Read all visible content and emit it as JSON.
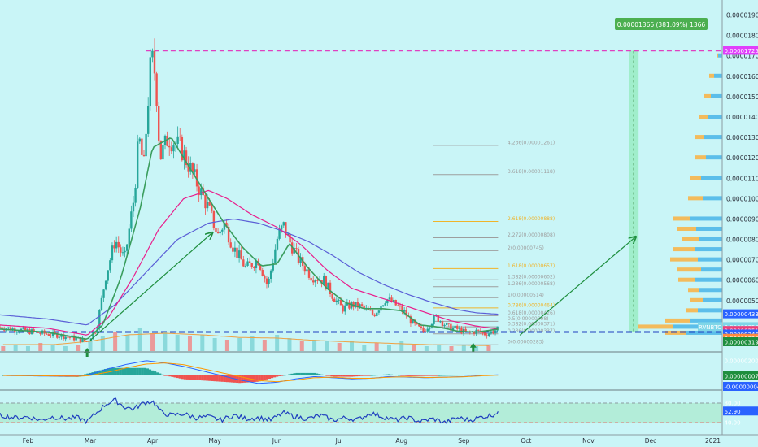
{
  "colors": {
    "background": "#c9f5f7",
    "up_candle": "#26a69a",
    "down_candle": "#ef5350",
    "ema_short": "#3a9d5d",
    "ema_mid": "#e91e8c",
    "ema_long": "#5b5fd6",
    "arrow": "#1e8e3e",
    "fib_grey": "#9e9e9e",
    "fib_gold": "#f0b429",
    "support": "#1f3fbf",
    "resistance": "#e040c0",
    "volume_profile_blue": "#4fb8e8",
    "volume_profile_orange": "#f7b54a",
    "measure_box": "#4caf50"
  },
  "price_axis": {
    "ticks": [
      "0.00001900",
      "0.00001800",
      "0.00001700",
      "0.00001600",
      "0.00001500",
      "0.00001400",
      "0.00001300",
      "0.00001200",
      "0.00001100",
      "0.00001000",
      "0.00000900",
      "0.00000800",
      "0.00000700",
      "0.00000600",
      "0.00000500"
    ],
    "tick_values": [
      1900,
      1800,
      1700,
      1600,
      1500,
      1400,
      1300,
      1200,
      1100,
      1000,
      900,
      800,
      700,
      600,
      500
    ]
  },
  "x_axis": {
    "labels": [
      "Feb",
      "Mar",
      "Apr",
      "May",
      "Jun",
      "Jul",
      "Aug",
      "Sep",
      "Oct",
      "Nov",
      "Dec",
      "2021"
    ],
    "positions": [
      1,
      2,
      3,
      4,
      5,
      6,
      7,
      8,
      9,
      10,
      11,
      12
    ]
  },
  "badges": {
    "top_target": {
      "text": "0.00001725",
      "color": "#e040fb"
    },
    "ema_long": {
      "text": "0.00000433",
      "color": "#2962ff"
    },
    "symbol": {
      "label": "RVNBTC",
      "text": "0.00000359",
      "color": "#7fd6e8"
    },
    "ema_mid": {
      "text": "0.00000351",
      "color": "#ec407a"
    },
    "support": {
      "text": "0.00000346",
      "color": "#2962ff"
    },
    "orange": {
      "text": "0.00000329",
      "color": "#ff8a3d"
    },
    "green": {
      "text": "0.00000319",
      "color": "#1e8e3e"
    },
    "macd_top": {
      "text": "0.00000200"
    },
    "macd_green": {
      "text": "0.00000007",
      "color": "#1e8e3e"
    },
    "macd_blue": {
      "text": "-0.00000004",
      "color": "#2962ff"
    },
    "rsi_top": {
      "text": "80.00"
    },
    "rsi_value": {
      "text": "62.90",
      "color": "#2962ff"
    },
    "rsi_bottom": {
      "text": "40.00"
    }
  },
  "measure": {
    "text": "0.00001366 (381.09%) 1366"
  },
  "fib_levels": [
    {
      "ratio": 4.236,
      "text": "4.236(0.00001261)",
      "value": 1261,
      "gold": false
    },
    {
      "ratio": 3.618,
      "text": "3.618(0.00001118)",
      "value": 1118,
      "gold": false
    },
    {
      "ratio": 2.618,
      "text": "2.618(0.00000888)",
      "value": 888,
      "gold": true
    },
    {
      "ratio": 2.272,
      "text": "2.272(0.00000808)",
      "value": 808,
      "gold": false
    },
    {
      "ratio": 2.0,
      "text": "2(0.00000745)",
      "value": 745,
      "gold": false
    },
    {
      "ratio": 1.618,
      "text": "1.618(0.00000657)",
      "value": 657,
      "gold": true
    },
    {
      "ratio": 1.382,
      "text": "1.382(0.00000602)",
      "value": 602,
      "gold": false
    },
    {
      "ratio": 1.236,
      "text": "1.236(0.00000568)",
      "value": 568,
      "gold": false
    },
    {
      "ratio": 1.0,
      "text": "1(0.00000514)",
      "value": 514,
      "gold": false
    },
    {
      "ratio": 0.786,
      "text": "0.786(0.00000464)",
      "value": 464,
      "gold": true
    },
    {
      "ratio": 0.618,
      "text": "0.618(0.00000426)",
      "value": 426,
      "gold": false
    },
    {
      "ratio": 0.5,
      "text": "0.5(0.00000398)",
      "value": 398,
      "gold": false
    },
    {
      "ratio": 0.382,
      "text": "0.382(0.00000371)",
      "value": 371,
      "gold": false
    },
    {
      "ratio": 0.236,
      "text": "0.236(0.00000337)",
      "value": 337,
      "gold": false
    },
    {
      "ratio": 0.0,
      "text": "0(0.00000283)",
      "value": 283,
      "gold": false
    }
  ],
  "chart_data": {
    "type": "line",
    "x_unit": "months",
    "xlim": [
      0.55,
      12.15
    ],
    "ylim": [
      280,
      1950
    ],
    "price_path": {
      "x": [
        0.55,
        0.9,
        1.2,
        1.5,
        1.75,
        1.95,
        2.1,
        2.25,
        2.4,
        2.55,
        2.7,
        2.78,
        2.86,
        2.92,
        2.98,
        3.05,
        3.12,
        3.25,
        3.45,
        3.6,
        3.75,
        3.9,
        4.05,
        4.15,
        4.3,
        4.5,
        4.7,
        4.85,
        5.0,
        5.1,
        5.2,
        5.35,
        5.55,
        5.75,
        5.9,
        6.05,
        6.2,
        6.35,
        6.55,
        6.75,
        6.9,
        7.05,
        7.2,
        7.35,
        7.55,
        7.75,
        7.9,
        8.05,
        8.2,
        8.35,
        8.55
      ],
      "y": [
        370,
        355,
        340,
        330,
        315,
        300,
        360,
        620,
        800,
        700,
        1000,
        1300,
        1150,
        1450,
        1700,
        1600,
        1200,
        1300,
        1250,
        1150,
        1050,
        950,
        820,
        880,
        760,
        660,
        700,
        570,
        800,
        870,
        790,
        700,
        620,
        600,
        520,
        460,
        480,
        470,
        430,
        510,
        480,
        440,
        380,
        350,
        420,
        370,
        360,
        340,
        350,
        335,
        360
      ]
    },
    "ema_short": {
      "x": [
        0.55,
        1.3,
        1.95,
        2.2,
        2.5,
        2.8,
        3.0,
        3.3,
        3.6,
        3.9,
        4.15,
        4.45,
        4.75,
        5.0,
        5.2,
        5.5,
        5.8,
        6.1,
        6.4,
        6.7,
        7.0,
        7.3,
        7.6,
        7.9,
        8.2,
        8.55
      ],
      "y": [
        360,
        345,
        310,
        380,
        620,
        950,
        1250,
        1300,
        1150,
        1000,
        880,
        760,
        670,
        680,
        780,
        660,
        560,
        490,
        460,
        460,
        450,
        380,
        370,
        350,
        345,
        360
      ]
    },
    "ema_mid": {
      "x": [
        0.55,
        1.3,
        1.95,
        2.3,
        2.7,
        3.1,
        3.5,
        3.9,
        4.2,
        4.6,
        5.0,
        5.4,
        5.8,
        6.2,
        6.6,
        7.0,
        7.4,
        7.8,
        8.2,
        8.55
      ],
      "y": [
        380,
        365,
        330,
        420,
        620,
        850,
        1000,
        1040,
        1000,
        920,
        860,
        770,
        650,
        560,
        520,
        480,
        440,
        400,
        375,
        360
      ]
    },
    "ema_long": {
      "x": [
        0.55,
        1.3,
        1.95,
        2.4,
        2.9,
        3.4,
        3.9,
        4.3,
        4.7,
        5.1,
        5.5,
        5.9,
        6.3,
        6.7,
        7.1,
        7.5,
        7.9,
        8.2,
        8.55
      ],
      "y": [
        430,
        410,
        380,
        480,
        640,
        800,
        880,
        900,
        880,
        840,
        790,
        720,
        640,
        580,
        530,
        490,
        455,
        440,
        433
      ]
    },
    "arrows": [
      {
        "from": [
          2.0,
          305
        ],
        "to": [
          3.95,
          830
        ]
      },
      {
        "from": [
          8.9,
          330
        ],
        "to": [
          10.75,
          810
        ]
      }
    ],
    "up_markers": [
      {
        "x": 1.95,
        "y": 300
      },
      {
        "x": 8.15,
        "y": 325
      }
    ],
    "resistance_level": 1725,
    "support_level": 346,
    "measure_x": [
      10.65,
      12.15
    ],
    "volume_profile": [
      {
        "price": 1700,
        "blue": 5,
        "orange": 2
      },
      {
        "price": 1600,
        "blue": 10,
        "orange": 6
      },
      {
        "price": 1500,
        "blue": 14,
        "orange": 8
      },
      {
        "price": 1400,
        "blue": 18,
        "orange": 10
      },
      {
        "price": 1300,
        "blue": 22,
        "orange": 12
      },
      {
        "price": 1200,
        "blue": 20,
        "orange": 14
      },
      {
        "price": 1100,
        "blue": 26,
        "orange": 14
      },
      {
        "price": 1000,
        "blue": 24,
        "orange": 18
      },
      {
        "price": 900,
        "blue": 40,
        "orange": 20
      },
      {
        "price": 850,
        "blue": 32,
        "orange": 24
      },
      {
        "price": 800,
        "blue": 28,
        "orange": 22
      },
      {
        "price": 750,
        "blue": 34,
        "orange": 26
      },
      {
        "price": 700,
        "blue": 30,
        "orange": 34
      },
      {
        "price": 650,
        "blue": 26,
        "orange": 30
      },
      {
        "price": 600,
        "blue": 34,
        "orange": 20
      },
      {
        "price": 550,
        "blue": 28,
        "orange": 14
      },
      {
        "price": 500,
        "blue": 24,
        "orange": 16
      },
      {
        "price": 450,
        "blue": 30,
        "orange": 14
      },
      {
        "price": 400,
        "blue": 40,
        "orange": 30
      },
      {
        "price": 370,
        "blue": 60,
        "orange": 44
      },
      {
        "price": 340,
        "blue": 44,
        "orange": 26
      }
    ],
    "volume": {
      "x": [
        0.6,
        0.8,
        1.0,
        1.2,
        1.4,
        1.6,
        1.8,
        2.0,
        2.2,
        2.4,
        2.6,
        2.8,
        3.0,
        3.2,
        3.4,
        3.6,
        3.8,
        4.0,
        4.2,
        4.4,
        4.6,
        4.8,
        5.0,
        5.2,
        5.4,
        5.6,
        5.8,
        6.0,
        6.2,
        6.4,
        6.6,
        6.8,
        7.0,
        7.2,
        7.4,
        7.6,
        7.8,
        8.0,
        8.2,
        8.4
      ],
      "v": [
        0.15,
        0.2,
        0.15,
        0.25,
        0.2,
        0.15,
        0.2,
        0.3,
        0.45,
        0.6,
        0.5,
        0.7,
        0.55,
        0.6,
        0.5,
        0.45,
        0.5,
        0.4,
        0.35,
        0.4,
        0.45,
        0.35,
        0.5,
        0.4,
        0.3,
        0.35,
        0.3,
        0.25,
        0.3,
        0.2,
        0.25,
        0.2,
        0.3,
        0.2,
        0.15,
        0.2,
        0.15,
        0.2,
        0.15,
        0.2
      ]
    },
    "volume_ma": {
      "x": [
        0.6,
        1.4,
        2.0,
        2.6,
        3.2,
        3.8,
        4.4,
        5.0,
        5.6,
        6.2,
        6.8,
        7.4,
        8.0,
        8.4
      ],
      "v": [
        0.2,
        0.2,
        0.3,
        0.5,
        0.55,
        0.5,
        0.42,
        0.4,
        0.33,
        0.28,
        0.24,
        0.2,
        0.18,
        0.17
      ]
    },
    "macd": {
      "x": [
        0.6,
        1.2,
        1.8,
        2.0,
        2.3,
        2.6,
        2.9,
        3.2,
        3.5,
        3.8,
        4.1,
        4.4,
        4.7,
        5.0,
        5.3,
        5.6,
        5.9,
        6.2,
        6.5,
        6.8,
        7.1,
        7.4,
        7.7,
        8.0,
        8.3,
        8.55
      ],
      "line": [
        0,
        -0.05,
        -0.1,
        0.1,
        0.6,
        1.0,
        1.3,
        1.1,
        0.8,
        0.4,
        0.0,
        -0.4,
        -0.7,
        -0.6,
        -0.3,
        -0.1,
        -0.2,
        -0.3,
        -0.25,
        -0.1,
        -0.15,
        -0.2,
        -0.15,
        -0.1,
        0.0,
        0.05
      ],
      "signal": [
        0,
        -0.03,
        -0.08,
        0.0,
        0.3,
        0.7,
        1.0,
        1.1,
        0.95,
        0.6,
        0.25,
        -0.1,
        -0.45,
        -0.55,
        -0.4,
        -0.2,
        -0.15,
        -0.25,
        -0.25,
        -0.15,
        -0.12,
        -0.18,
        -0.16,
        -0.12,
        -0.03,
        0.02
      ]
    },
    "rsi": {
      "x": [
        0.55,
        0.8,
        1.0,
        1.2,
        1.4,
        1.6,
        1.8,
        1.95,
        2.1,
        2.25,
        2.4,
        2.55,
        2.7,
        2.85,
        3.0,
        3.15,
        3.3,
        3.5,
        3.7,
        3.9,
        4.1,
        4.3,
        4.5,
        4.7,
        4.9,
        5.1,
        5.3,
        5.5,
        5.7,
        5.9,
        6.1,
        6.3,
        6.5,
        6.7,
        6.9,
        7.1,
        7.3,
        7.5,
        7.7,
        7.9,
        8.1,
        8.3,
        8.45,
        8.55
      ],
      "y": [
        55,
        50,
        52,
        45,
        52,
        48,
        50,
        42,
        60,
        78,
        86,
        72,
        68,
        80,
        84,
        60,
        55,
        58,
        50,
        52,
        45,
        55,
        48,
        50,
        45,
        60,
        52,
        48,
        55,
        45,
        50,
        46,
        60,
        52,
        45,
        50,
        42,
        48,
        40,
        50,
        45,
        52,
        55,
        62.9
      ],
      "upper": 80,
      "lower": 40
    }
  }
}
